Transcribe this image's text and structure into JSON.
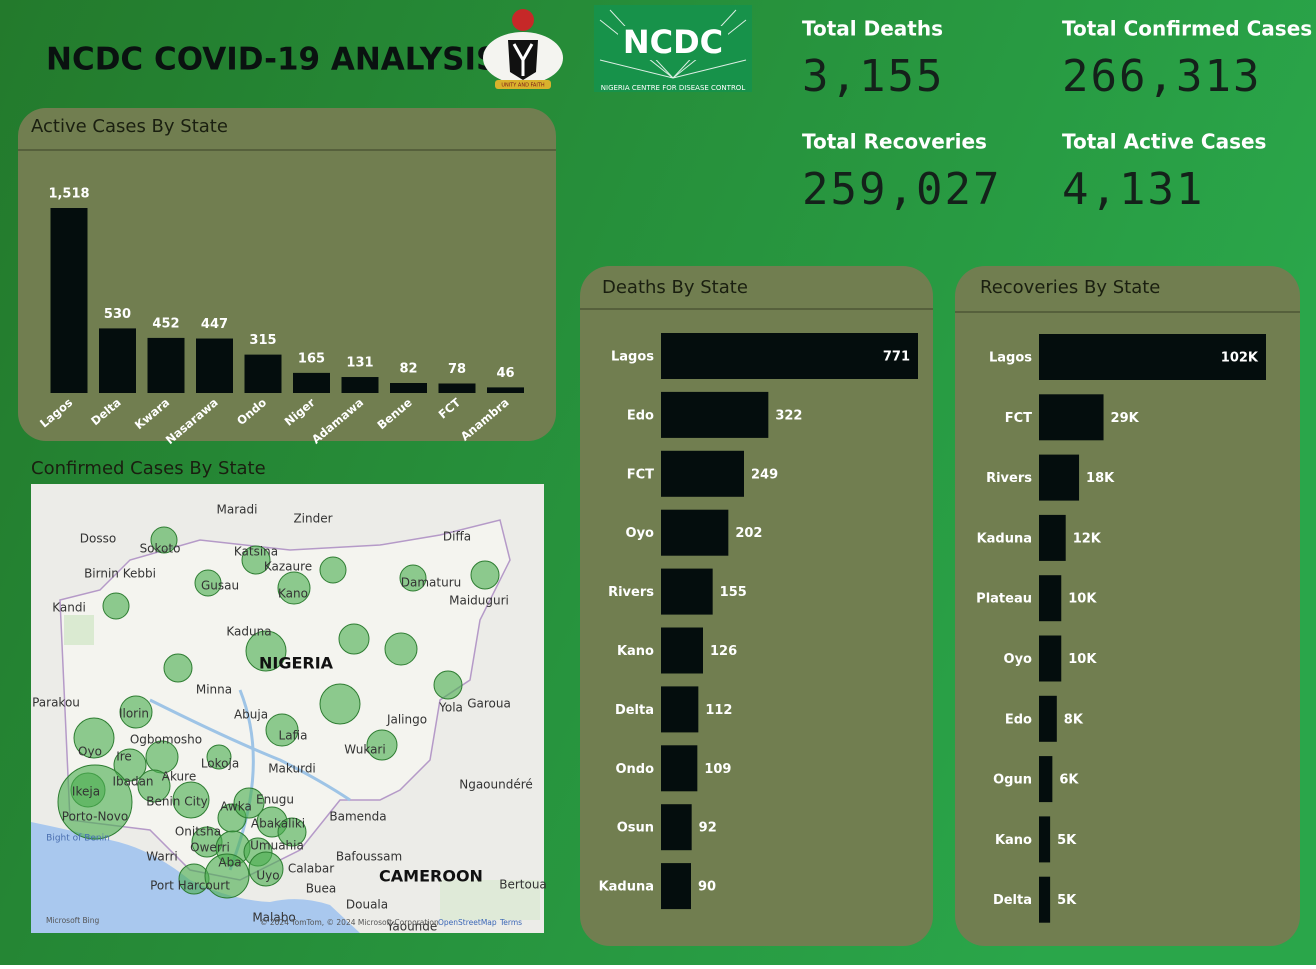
{
  "header": {
    "title": "NCDC COVID-19 ANALYSIS",
    "emblem_motto": "UNITY AND FAITH",
    "logo_text": "NCDC",
    "logo_subtitle": "NIGERIA CENTRE FOR DISEASE CONTROL"
  },
  "kpis": [
    {
      "label": "Total Deaths",
      "value": "3,155"
    },
    {
      "label": "Total Confirmed Cases",
      "value": "266,313"
    },
    {
      "label": "Total Recoveries",
      "value": "259,027"
    },
    {
      "label": "Total Active Cases",
      "value": "4,131"
    }
  ],
  "chart_data": [
    {
      "type": "bar",
      "orientation": "vertical",
      "title": "Active Cases By State",
      "color": "#040d0d",
      "categories": [
        "Lagos",
        "Delta",
        "Kwara",
        "Nasarawa",
        "Ondo",
        "Niger",
        "Adamawa",
        "Benue",
        "FCT",
        "Anambra"
      ],
      "values": [
        1518,
        530,
        452,
        447,
        315,
        165,
        131,
        82,
        78,
        46
      ],
      "value_labels": [
        "1,518",
        "530",
        "452",
        "447",
        "315",
        "165",
        "131",
        "82",
        "78",
        "46"
      ]
    },
    {
      "type": "map",
      "title": "Confirmed Cases By State",
      "labels": [
        "Maradi",
        "Zinder",
        "Diffa",
        "Sokoto",
        "Dosso",
        "Birnin Kebbi",
        "Katsina",
        "Kazaure",
        "Gusau",
        "Kano",
        "Damaturu",
        "Maiduguri",
        "Kandi",
        "Kaduna",
        "NIGERIA",
        "Minna",
        "Parakou",
        "Ilorin",
        "Abuja",
        "Yola",
        "Garoua",
        "Ogbomosho",
        "Oyo",
        "Ire",
        "Lafia",
        "Jalingo",
        "Wukari",
        "Ibadan",
        "Akure",
        "Lokoja",
        "Makurdi",
        "Ikeja",
        "Benin City",
        "Enugu",
        "Ngaoundéré",
        "Porto-Novo",
        "Bight of Benin",
        "Awka",
        "Abakaliki",
        "Onitsha",
        "Owerri",
        "Umuahia",
        "Bamenda",
        "Warri",
        "Aba",
        "Bafoussam",
        "Calabar",
        "Port Harcourt",
        "Uyo",
        "CAMEROON",
        "Buea",
        "Bertoua",
        "Douala",
        "Malabo",
        "Yaounde"
      ],
      "attribution": [
        "Microsoft Bing",
        "© 2024 TomTom, © 2024 Microsoft Corporation",
        "OpenStreetMap",
        "Terms"
      ]
    },
    {
      "type": "bar",
      "orientation": "horizontal",
      "title": "Deaths By State",
      "color": "#040d0d",
      "categories": [
        "Lagos",
        "Edo",
        "FCT",
        "Oyo",
        "Rivers",
        "Kano",
        "Delta",
        "Ondo",
        "Osun",
        "Kaduna"
      ],
      "values": [
        771,
        322,
        249,
        202,
        155,
        126,
        112,
        109,
        92,
        90
      ]
    },
    {
      "type": "bar",
      "orientation": "horizontal",
      "title": "Recoveries By State",
      "color": "#040d0d",
      "categories": [
        "Lagos",
        "FCT",
        "Rivers",
        "Kaduna",
        "Plateau",
        "Oyo",
        "Edo",
        "Ogun",
        "Kano",
        "Delta"
      ],
      "values": [
        102000,
        29000,
        18000,
        12000,
        10000,
        10000,
        8000,
        6000,
        5000,
        5000
      ],
      "value_labels": [
        "102K",
        "29K",
        "18K",
        "12K",
        "10K",
        "10K",
        "8K",
        "6K",
        "5K",
        "5K"
      ]
    }
  ]
}
